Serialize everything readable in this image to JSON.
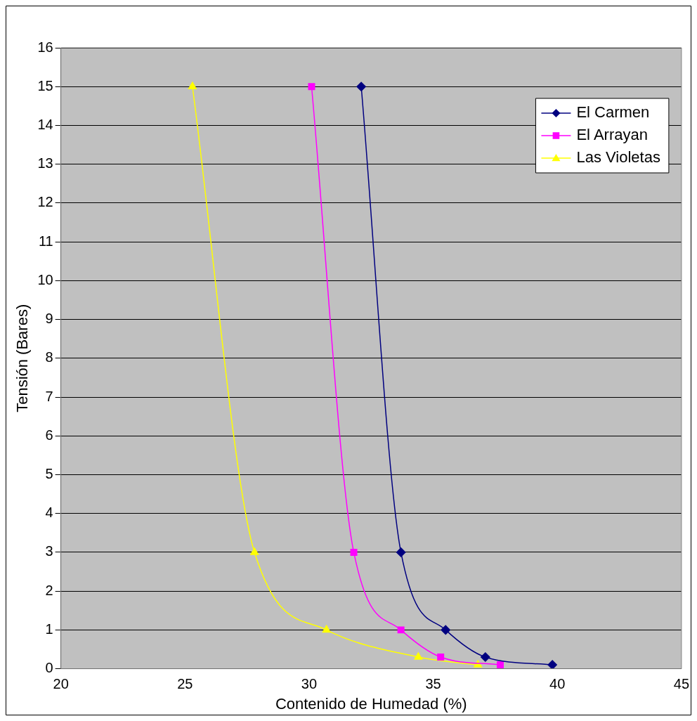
{
  "chart_data": {
    "type": "line",
    "xlabel": "Contenido de Humedad (%)",
    "ylabel": "Tensión (Bares)",
    "xlim": [
      20,
      45
    ],
    "xticks": [
      20,
      25,
      30,
      35,
      40,
      45
    ],
    "ylim": [
      0,
      16
    ],
    "yticks": [
      0,
      1,
      2,
      3,
      4,
      5,
      6,
      7,
      8,
      9,
      10,
      11,
      12,
      13,
      14,
      15,
      16
    ],
    "grid": "y",
    "legend": "top right",
    "line_style": "solid",
    "series": [
      {
        "name": "El Carmen",
        "color": "#000080",
        "marker": "diamond",
        "x": [
          32.1,
          33.7,
          35.5,
          37.1,
          39.8
        ],
        "values": [
          15,
          3,
          1,
          0.3,
          0.1
        ]
      },
      {
        "name": "El Arrayan",
        "color": "#ff00ff",
        "marker": "square",
        "x": [
          30.1,
          31.8,
          33.7,
          35.3,
          37.7
        ],
        "values": [
          15,
          3,
          1,
          0.3,
          0.1
        ]
      },
      {
        "name": "Las Violetas",
        "color": "#ffff00",
        "marker": "triangle",
        "x": [
          25.3,
          27.8,
          30.7,
          34.4,
          36.8
        ],
        "values": [
          15,
          3,
          1,
          0.3,
          0.1
        ]
      }
    ]
  }
}
